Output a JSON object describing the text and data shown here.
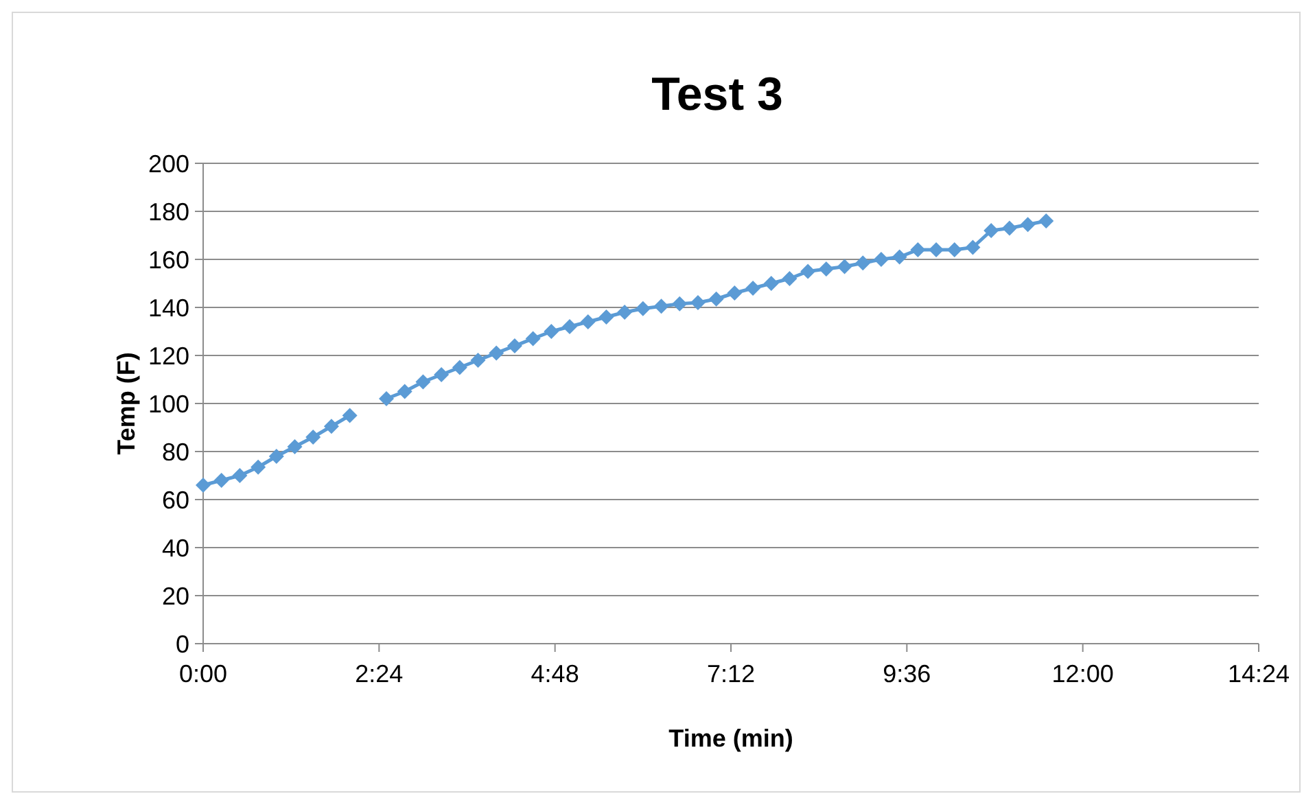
{
  "chart_data": {
    "type": "line",
    "title": "Test 3",
    "xlabel": "Time (min)",
    "ylabel": "Temp (F)",
    "x": [
      0,
      0.25,
      0.5,
      0.75,
      1,
      1.25,
      1.5,
      1.75,
      2,
      2.25,
      2.5,
      2.75,
      3,
      3.25,
      3.5,
      3.75,
      4,
      4.25,
      4.5,
      4.75,
      5,
      5.25,
      5.5,
      5.75,
      6,
      6.25,
      6.5,
      6.75,
      7,
      7.25,
      7.5,
      7.75,
      8,
      8.25,
      8.5,
      8.75,
      9,
      9.25,
      9.5,
      9.75,
      10,
      10.25,
      10.5,
      10.75,
      11,
      11.25,
      11.5
    ],
    "series": [
      {
        "color": "#5b9bd5",
        "values": [
          66,
          68,
          70,
          73.5,
          78,
          82,
          86,
          90.5,
          95,
          null,
          102,
          105,
          109,
          112,
          115,
          118,
          121,
          124,
          127,
          130,
          132,
          134,
          136,
          138,
          139.5,
          140.5,
          141.5,
          142,
          143.5,
          146,
          148,
          150,
          152,
          155,
          156,
          157,
          158.5,
          160,
          161,
          164,
          164,
          164,
          165,
          172,
          173,
          174.5,
          176
        ]
      }
    ],
    "xlim": [
      0,
      14.4
    ],
    "xticks": [
      {
        "value": 0,
        "label": "0:00"
      },
      {
        "value": 2.4,
        "label": "2:24"
      },
      {
        "value": 4.8,
        "label": "4:48"
      },
      {
        "value": 7.2,
        "label": "7:12"
      },
      {
        "value": 9.6,
        "label": "9:36"
      },
      {
        "value": 12,
        "label": "12:00"
      },
      {
        "value": 14.4,
        "label": "14:24"
      }
    ],
    "ylim": [
      0,
      200
    ],
    "yticks": [
      0,
      20,
      40,
      60,
      80,
      100,
      120,
      140,
      160,
      180,
      200
    ],
    "grid": "y",
    "marker": "diamond",
    "line_style": "solid"
  }
}
